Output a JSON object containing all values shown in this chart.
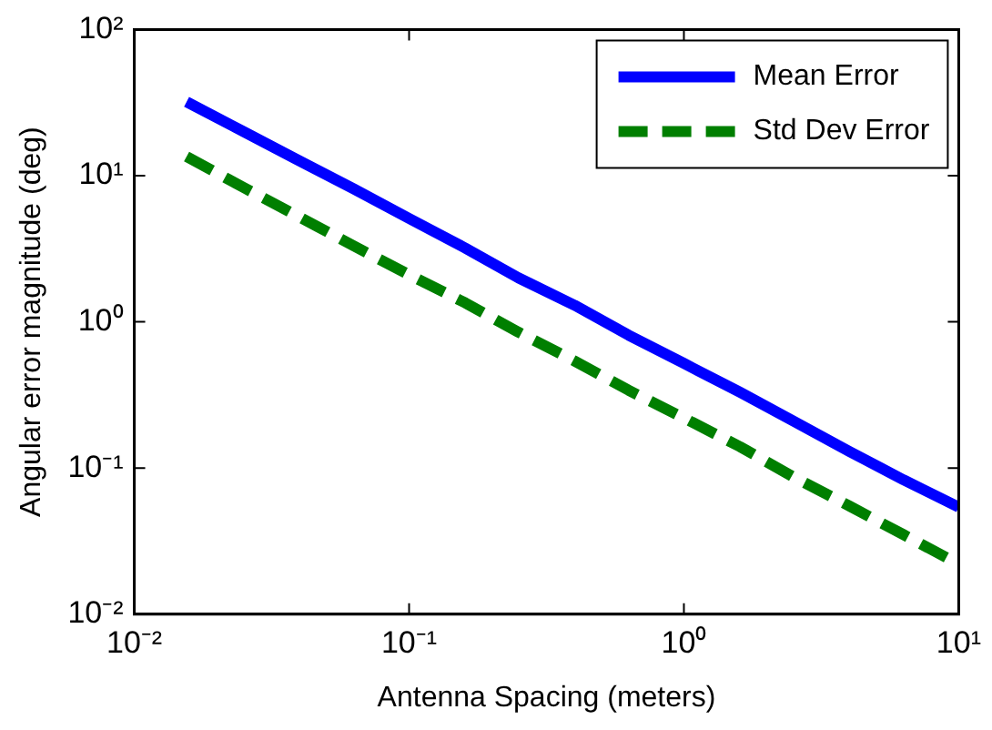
{
  "chart_data": {
    "type": "line",
    "xlabel": "Antenna Spacing (meters)",
    "ylabel": "Angular error magnitude (deg)",
    "log": "xy",
    "x": [
      0.0155,
      0.025,
      0.04,
      0.063,
      0.1,
      0.16,
      0.25,
      0.4,
      0.63,
      1,
      1.6,
      2.5,
      4,
      6.3,
      10
    ],
    "series": [
      {
        "name": "Mean Error",
        "color": "#0000ff",
        "line_style": "solid",
        "values": [
          32,
          20,
          12.6,
          8.1,
          5.1,
          3.2,
          2.0,
          1.3,
          0.81,
          0.52,
          0.33,
          0.21,
          0.13,
          0.083,
          0.054
        ]
      },
      {
        "name": "Std Dev Error",
        "color": "#007f00",
        "line_style": "dashed",
        "values": [
          13.5,
          8.3,
          5.2,
          3.3,
          2.1,
          1.35,
          0.85,
          0.54,
          0.34,
          0.22,
          0.14,
          0.087,
          0.055,
          0.035,
          0.022
        ]
      }
    ],
    "xlim": [
      0.01,
      10
    ],
    "ylim": [
      0.01,
      100
    ],
    "xticks": [
      {
        "value": 0.01,
        "label": "10⁻²"
      },
      {
        "value": 0.1,
        "label": "10⁻¹"
      },
      {
        "value": 1,
        "label": "10⁰"
      },
      {
        "value": 10,
        "label": "10¹"
      }
    ],
    "yticks": [
      {
        "value": 0.01,
        "label": "10⁻²"
      },
      {
        "value": 0.1,
        "label": "10⁻¹"
      },
      {
        "value": 1,
        "label": "10⁰"
      },
      {
        "value": 10,
        "label": "10¹"
      },
      {
        "value": 100,
        "label": "10²"
      }
    ],
    "legend": "top right"
  }
}
